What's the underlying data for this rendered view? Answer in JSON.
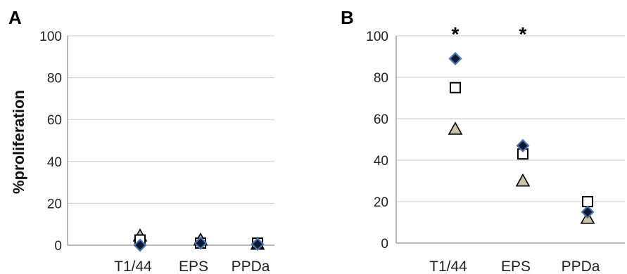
{
  "colors": {
    "grid": "#c8c8c8",
    "axis": "#a0a0a0",
    "diamond_fill": "#0a1a30",
    "diamond_stroke": "#4a74b4",
    "square_fill": "#ffffff",
    "square_stroke": "#000000",
    "triangle_fill": "#c9c2a8",
    "triangle_stroke": "#000000"
  },
  "chart_data": [
    {
      "panel": "A",
      "type": "scatter",
      "ylabel": "%proliferation",
      "ylim": [
        0,
        100
      ],
      "yticks": [
        0,
        20,
        40,
        60,
        80,
        100
      ],
      "categories": [
        "T1/44",
        "EPS",
        "PPDa"
      ],
      "grid": true,
      "annotations": [],
      "series": [
        {
          "marker": "diamond",
          "values": [
            0,
            1,
            0.5
          ]
        },
        {
          "marker": "square",
          "values": [
            2.5,
            1,
            1
          ]
        },
        {
          "marker": "triangle",
          "values": [
            4.5,
            2.5,
            0.5
          ]
        }
      ]
    },
    {
      "panel": "B",
      "type": "scatter",
      "ylabel": "",
      "ylim": [
        0,
        100
      ],
      "yticks": [
        0,
        20,
        40,
        60,
        80,
        100
      ],
      "categories": [
        "T1/44",
        "EPS",
        "PPDa"
      ],
      "grid": true,
      "annotations": [
        {
          "category": "T1/44",
          "text": "*"
        },
        {
          "category": "EPS",
          "text": "*"
        }
      ],
      "series": [
        {
          "marker": "diamond",
          "values": [
            89,
            47,
            15
          ]
        },
        {
          "marker": "square",
          "values": [
            75,
            43,
            20
          ]
        },
        {
          "marker": "triangle",
          "values": [
            55,
            30,
            12
          ]
        }
      ]
    }
  ]
}
